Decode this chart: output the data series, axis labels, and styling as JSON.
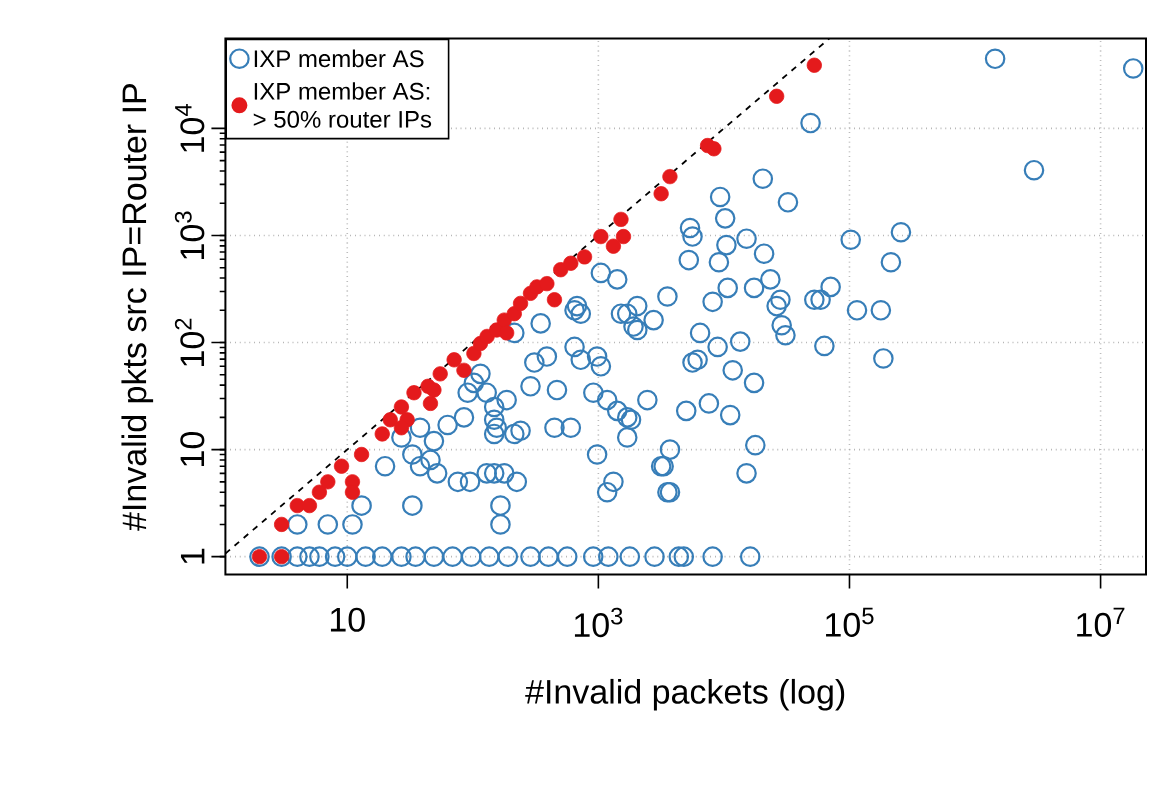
{
  "chart_data": {
    "type": "scatter",
    "xlabel": "#Invalid packets (log)",
    "ylabel": "#Invalid pkts src IP=Router IP",
    "log": "xy",
    "grid": true,
    "legend": "top left",
    "marker": "circle",
    "xlim": [
      1.07,
      23000000
    ],
    "ylim": [
      0.68,
      69000
    ],
    "xticks": [
      10,
      {
        "value": 1000,
        "label": "10$^{3}$"
      },
      {
        "value": 100000,
        "label": "10$^{5}$"
      },
      {
        "value": 10000000,
        "label": "10$^{7}$"
      }
    ],
    "yticks": [
      1,
      10,
      {
        "value": 100,
        "label": "10$^{2}$"
      },
      {
        "value": 1000,
        "label": "10$^{3}$"
      },
      {
        "value": 10000,
        "label": "10$^{4}$"
      }
    ],
    "series": [
      {
        "name": "IXP member AS",
        "color": "#377eb8",
        "x": [
          2,
          3,
          4,
          5,
          6,
          8,
          10,
          14,
          19,
          27,
          35,
          49,
          69,
          97,
          135,
          190,
          288,
          400,
          565,
          910,
          1200,
          1780,
          2800,
          4370,
          4790,
          8130,
          16200,
          4,
          7,
          11,
          13,
          33,
          166,
          166,
          20,
          33,
          38,
          27,
          38,
          46,
          63,
          76,
          95,
          129,
          148,
          178,
          224,
          52,
          155,
          148,
          214,
          240,
          85,
          148,
          186,
          91,
          102,
          115,
          288,
          389,
          468,
          447,
          603,
          347,
          646,
          724,
          977,
          1047,
          1175,
          1413,
          1698,
          1820,
          1698,
          2455,
          977,
          1175,
          1318,
          1047,
          1413,
          1514,
          2042,
          1905,
          676,
          3162,
          3548,
          3548,
          2754,
          48980,
          1445000,
          18200000,
          2950000,
          20400,
          9330,
          32360,
          10230,
          5370,
          5620,
          5250,
          9120,
          10470,
          15140,
          20890,
          102300,
          257000,
          213800,
          8130,
          10720,
          17380,
          23440,
          28180,
          26300,
          52480,
          58880,
          70790,
          114800,
          177800,
          28840,
          30900,
          63100,
          186200,
          13490,
          6460,
          8910,
          5620,
          6170,
          11750,
          17380,
          5010,
          7590,
          11220,
          17780,
          3720,
          3310,
          3720,
          15140,
          1698,
          2040,
          646,
          724,
          912,
          309,
          214,
          129,
          49,
          148
        ],
        "values": [
          1,
          1,
          1,
          1,
          1,
          1,
          1,
          1,
          1,
          1,
          1,
          1,
          1,
          1,
          1,
          1,
          1,
          1,
          1,
          1,
          1,
          1,
          1,
          1,
          1,
          1,
          1,
          2,
          2,
          2,
          3,
          3,
          3,
          2,
          7,
          9,
          7,
          13,
          16,
          8,
          17,
          5,
          5,
          6,
          6,
          6,
          5,
          6,
          16,
          14,
          14,
          15,
          20,
          25,
          29,
          34,
          42,
          51,
          39,
          74,
          36,
          16,
          16,
          151,
          200,
          186,
          74,
          60,
          29,
          23,
          20,
          19,
          13,
          29,
          9,
          4,
          5,
          447,
          389,
          186,
          131,
          141,
          219,
          7,
          4,
          269,
          162,
          11220,
          44670,
          36300,
          4070,
          3390,
          2290,
          2040,
          1445,
          1175,
          977,
          589,
          562,
          813,
          933,
          676,
          912,
          1072,
          562,
          240,
          324,
          324,
          389,
          251,
          219,
          251,
          251,
          331,
          200,
          200,
          145,
          117,
          93,
          71,
          102,
          123,
          91,
          65,
          69,
          55,
          42,
          23,
          27,
          21,
          11,
          10,
          7,
          4,
          6,
          186,
          219,
          91,
          69,
          34,
          65,
          123,
          34,
          12,
          19
        ]
      },
      {
        "name": "IXP member AS: > 50% router IPs",
        "color": "#e41a1c",
        "x": [
          2,
          3,
          3,
          4,
          5,
          6,
          7,
          11,
          9,
          13,
          19,
          22,
          30,
          27,
          34,
          46,
          44,
          55,
          71,
          85,
          102,
          115,
          130,
          155,
          178,
          214,
          240,
          288,
          324,
          389,
          447,
          501,
          603,
          776,
          1047,
          1318,
          1585,
          1514,
          3162,
          3715,
          27,
          11,
          49,
          186,
          7413,
          8318,
          26300,
          52480
        ],
        "values": [
          1,
          1,
          2,
          3,
          3,
          4,
          5,
          5,
          7,
          9,
          14,
          19,
          19,
          25,
          34,
          27,
          39,
          51,
          69,
          55,
          79,
          98,
          114,
          131,
          162,
          186,
          232,
          288,
          331,
          355,
          251,
          479,
          550,
          631,
          977,
          794,
          977,
          1413,
          2455,
          3548,
          16,
          4,
          36,
          123,
          6918,
          6457,
          19950,
          38900
        ]
      },
      {
        "type": "line",
        "color": "#000000",
        "line_style": "dashed",
        "marker": "none",
        "x": [
          1.07,
          69000
        ],
        "values": [
          1.07,
          69000
        ]
      }
    ]
  }
}
